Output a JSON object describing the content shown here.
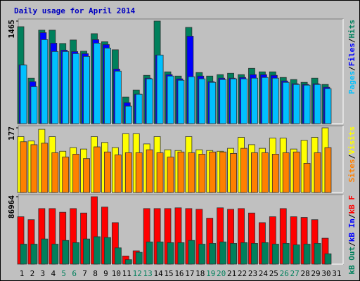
{
  "chart_data": [
    {
      "type": "bar",
      "title": "Daily usage for April 2014",
      "legend_separator": "/",
      "ylim": [
        0,
        1465
      ],
      "yticks": [
        1465
      ],
      "series": [
        {
          "name": "Hits",
          "color": "#00805c",
          "values": [
            1385,
            650,
            1335,
            1335,
            1145,
            1195,
            1035,
            1285,
            1170,
            1055,
            380,
            480,
            690,
            1465,
            740,
            680,
            1375,
            730,
            680,
            700,
            720,
            700,
            790,
            740,
            740,
            660,
            630,
            590,
            650,
            560,
            0
          ]
        },
        {
          "name": "Files",
          "color": "#0000ff",
          "values": [
            840,
            600,
            1300,
            1150,
            1050,
            1030,
            1000,
            1200,
            1130,
            780,
            300,
            420,
            650,
            980,
            700,
            640,
            1250,
            680,
            600,
            650,
            650,
            660,
            700,
            700,
            690,
            610,
            570,
            560,
            570,
            520,
            0
          ]
        },
        {
          "name": "Pages",
          "color": "#00c0ff",
          "values": [
            837,
            528,
            1200,
            1030,
            1030,
            1000,
            960,
            1150,
            1080,
            750,
            250,
            420,
            640,
            980,
            680,
            620,
            670,
            640,
            590,
            630,
            640,
            640,
            650,
            660,
            650,
            590,
            560,
            550,
            560,
            500,
            0
          ]
        }
      ]
    },
    {
      "type": "bar",
      "legend_separator": "/",
      "ylim": [
        0,
        177
      ],
      "yticks": [
        177
      ],
      "series": [
        {
          "name": "Visits",
          "color": "#ffff00",
          "values": [
            153,
            141,
            173,
            153,
            113,
            123,
            119,
            153,
            137,
            123,
            161,
            161,
            133,
            153,
            117,
            115,
            153,
            117,
            115,
            113,
            121,
            151,
            131,
            121,
            149,
            149,
            119,
            143,
            151,
            177,
            0
          ]
        },
        {
          "name": "Sites",
          "color": "#ff8000",
          "values": [
            139,
            131,
            135,
            109,
            97,
            105,
            93,
            125,
            111,
            103,
            109,
            109,
            117,
            109,
            97,
            111,
            109,
            105,
            111,
            111,
            107,
            121,
            109,
            109,
            105,
            109,
            111,
            80,
            109,
            123,
            0
          ]
        }
      ]
    },
    {
      "type": "bar",
      "legend_separator": "/",
      "ylim": [
        0,
        86964
      ],
      "yticks": [
        86964
      ],
      "categories": [
        "1",
        "2",
        "3",
        "4",
        "5",
        "6",
        "7",
        "8",
        "9",
        "10",
        "11",
        "12",
        "13",
        "14",
        "15",
        "16",
        "17",
        "18",
        "19",
        "20",
        "21",
        "22",
        "23",
        "24",
        "25",
        "26",
        "27",
        "28",
        "29",
        "30",
        "31"
      ],
      "category_colors": [
        "#000000",
        "#000000",
        "#000000",
        "#000000",
        "#00805c",
        "#00805c",
        "#000000",
        "#000000",
        "#000000",
        "#000000",
        "#000000",
        "#00805c",
        "#00805c",
        "#000000",
        "#000000",
        "#000000",
        "#000000",
        "#000000",
        "#00805c",
        "#00805c",
        "#000000",
        "#000000",
        "#000000",
        "#000000",
        "#000000",
        "#00805c",
        "#00805c",
        "#000000",
        "#000000",
        "#000000",
        "#000000"
      ],
      "series": [
        {
          "name": "kB F",
          "color": "#ff0000",
          "values": [
            61160,
            57340,
            71670,
            71670,
            66900,
            71670,
            65940,
            86964,
            73590,
            53520,
            10510,
            17200,
            71670,
            71670,
            71670,
            72630,
            71670,
            70720,
            59250,
            72630,
            70720,
            71670,
            65940,
            53520,
            61160,
            71670,
            61160,
            60210,
            57340,
            33450,
            0
          ]
        },
        {
          "name": "kB In",
          "color": "#0000ff",
          "values": [
            0,
            0,
            0,
            0,
            0,
            0,
            0,
            0,
            0,
            0,
            0,
            0,
            0,
            0,
            0,
            0,
            0,
            0,
            0,
            0,
            0,
            0,
            0,
            0,
            0,
            0,
            0,
            0,
            0,
            0,
            0
          ]
        },
        {
          "name": "kB Out",
          "color": "#00805c",
          "values": [
            25800,
            25800,
            32490,
            25800,
            30580,
            27710,
            32490,
            35360,
            34400,
            21020,
            5730,
            15290,
            28670,
            28670,
            27710,
            27710,
            30580,
            25800,
            26760,
            28670,
            26760,
            27710,
            26760,
            27710,
            25800,
            26760,
            24850,
            25800,
            26760,
            13380,
            0
          ]
        }
      ]
    }
  ]
}
